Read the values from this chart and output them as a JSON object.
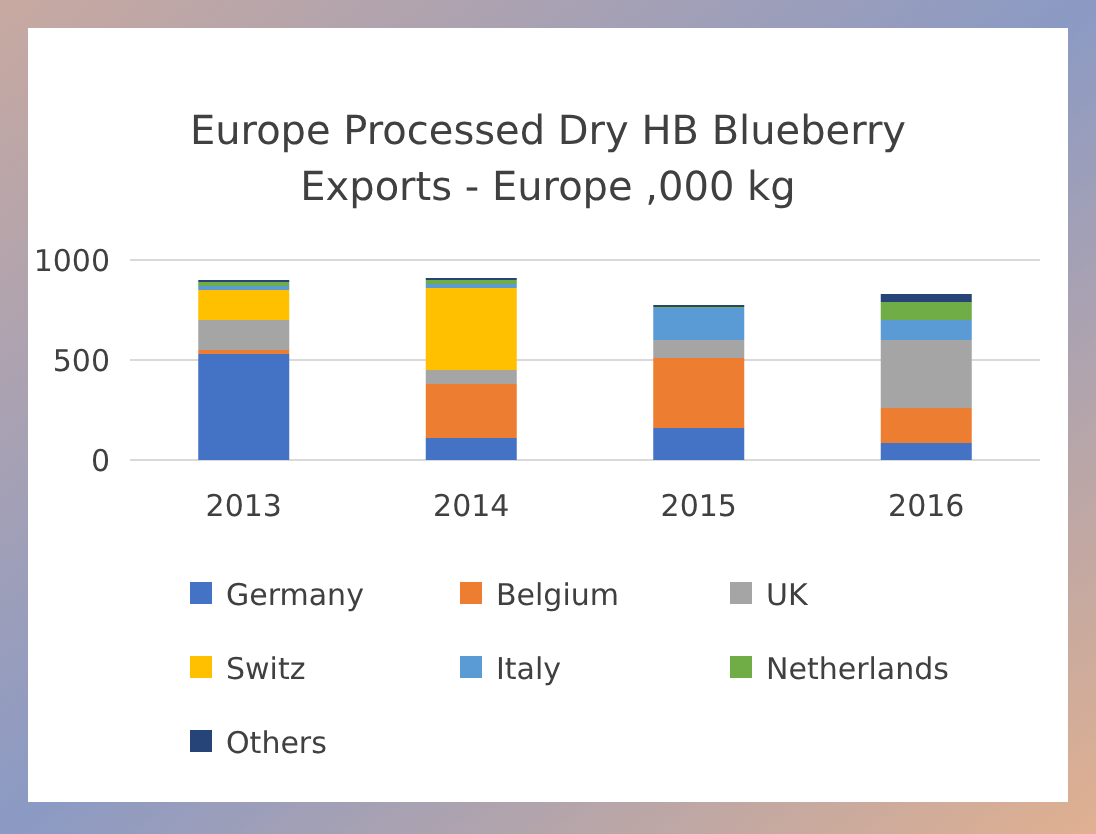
{
  "chart_data": {
    "type": "bar",
    "title": "Europe Processed Dry HB Blueberry Exports - Europe ,000 kg",
    "categories": [
      "2013",
      "2014",
      "2015",
      "2016"
    ],
    "stacked": true,
    "ylim": [
      0,
      1000
    ],
    "yticks": [
      0,
      500,
      1000
    ],
    "grid": "y",
    "legend": "bottom",
    "series": [
      {
        "name": "Germany",
        "color": "#4472c4",
        "values": [
          530,
          110,
          160,
          85
        ]
      },
      {
        "name": "Belgium",
        "color": "#ed7d31",
        "values": [
          20,
          270,
          350,
          175
        ]
      },
      {
        "name": "UK",
        "color": "#a5a5a5",
        "values": [
          150,
          70,
          90,
          340
        ]
      },
      {
        "name": "Switz",
        "color": "#ffc000",
        "values": [
          150,
          410,
          0,
          0
        ]
      },
      {
        "name": "Italy",
        "color": "#5b9bd5",
        "values": [
          20,
          20,
          160,
          100
        ]
      },
      {
        "name": "Netherlands",
        "color": "#70ad47",
        "values": [
          20,
          20,
          5,
          90
        ]
      },
      {
        "name": "Others",
        "color": "#264478",
        "values": [
          10,
          10,
          10,
          40
        ]
      }
    ]
  }
}
